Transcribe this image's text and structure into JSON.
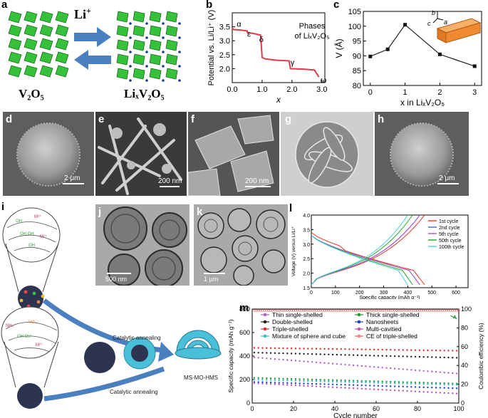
{
  "panels": {
    "a": {
      "label": "a",
      "ion": "Li",
      "ion_sup": "+",
      "left_formula": "V₂O₅",
      "right_formula": "LiₓV₂O₅"
    },
    "b": {
      "label": "b",
      "title_line1": "Phases",
      "title_line2": "of LiₓV₂O₅"
    },
    "c": {
      "label": "c",
      "axis_b": "b",
      "axis_c": "c",
      "axis_a": "a"
    },
    "d": {
      "label": "d",
      "scale": "2 μm"
    },
    "e": {
      "label": "e",
      "scale": "200 nm"
    },
    "f": {
      "label": "f",
      "scale": "200 nm"
    },
    "g": {
      "label": "g"
    },
    "h": {
      "label": "h",
      "scale": "2 μm"
    },
    "i": {
      "label": "i",
      "step1": "Catalytic annealing",
      "step2": "Catalytic annealing",
      "product": "MS-MO-HMS"
    },
    "j": {
      "label": "j",
      "scale": "500 nm"
    },
    "k": {
      "label": "k",
      "scale": "1 μm"
    },
    "l": {
      "label": "l"
    },
    "m": {
      "label": "m"
    }
  },
  "chart_data": [
    {
      "id": "b",
      "type": "line",
      "title": "Phases of LiₓV₂O₅",
      "xlabel": "x",
      "ylabel": "Potential vs. Li/Li⁺ (V)",
      "xlim": [
        0,
        3.1
      ],
      "ylim": [
        1.5,
        4.0
      ],
      "xticks": [
        0,
        1,
        2,
        3
      ],
      "yticks": [
        2.0,
        2.5,
        3.0,
        3.5
      ],
      "series": [
        {
          "x": [
            0.0,
            0.05,
            0.3,
            0.5,
            0.5,
            0.75,
            0.95,
            1.0,
            1.1,
            1.5,
            1.9,
            1.95,
            2.4,
            2.75,
            2.9
          ],
          "y": [
            3.45,
            3.4,
            3.38,
            3.35,
            3.3,
            3.25,
            3.2,
            2.4,
            2.35,
            2.3,
            2.28,
            2.0,
            1.98,
            1.95,
            1.7
          ]
        }
      ],
      "annotations": [
        {
          "text": "α",
          "x": 0.15,
          "y": 3.5
        },
        {
          "text": "ε",
          "x": 0.5,
          "y": 3.15
        },
        {
          "text": "δ",
          "x": 0.9,
          "y": 2.95
        },
        {
          "text": "γ",
          "x": 1.95,
          "y": 2.12
        },
        {
          "text": "ω",
          "x": 2.95,
          "y": 1.5
        }
      ]
    },
    {
      "id": "c",
      "type": "line",
      "xlabel": "x in LiₓV₂O₅",
      "ylabel": "V (Å)",
      "xlim": [
        -0.2,
        3.2
      ],
      "ylim": [
        80,
        105
      ],
      "xticks": [
        0,
        1,
        2,
        3
      ],
      "yticks": [
        80,
        85,
        90,
        95,
        100,
        105
      ],
      "series": [
        {
          "x": [
            0,
            0.5,
            1,
            2,
            3
          ],
          "y": [
            89.8,
            92.2,
            100.5,
            90.5,
            86.5
          ]
        }
      ]
    },
    {
      "id": "l",
      "type": "line",
      "xlabel": "Specific capacity (mAh g⁻¹)",
      "ylabel": "Voltage (V) versus Li/Li⁺",
      "xlim": [
        0,
        650
      ],
      "ylim": [
        1.5,
        4.0
      ],
      "xticks": [
        0,
        100,
        200,
        300,
        400,
        500,
        600
      ],
      "yticks": [
        1.5,
        2.0,
        2.5,
        3.0,
        3.5,
        4.0
      ],
      "legend": "top-right",
      "series": [
        {
          "name": "1st cycle",
          "color": "#e8382a",
          "end": 470
        },
        {
          "name": "2nd cycle",
          "color": "#2a6ad0",
          "end": 450
        },
        {
          "name": "5th cycle",
          "color": "#b04fc8",
          "end": 450
        },
        {
          "name": "50th cycle",
          "color": "#25a82a",
          "end": 420
        },
        {
          "name": "100th cycle",
          "color": "#4ad0d8",
          "end": 400
        }
      ]
    },
    {
      "id": "m",
      "type": "scatter",
      "xlabel": "Cycle number",
      "ylabel": "Specific capacity (mAh g⁻¹)",
      "y2label": "Coulombic efficiency (%)",
      "xlim": [
        0,
        100
      ],
      "ylim": [
        0,
        800
      ],
      "y2lim": [
        0,
        100
      ],
      "xticks": [
        0,
        20,
        40,
        60,
        80,
        100
      ],
      "yticks": [
        0,
        200,
        400,
        600,
        800
      ],
      "y2ticks": [
        0,
        20,
        40,
        60,
        80,
        100
      ],
      "legend": "top",
      "series": [
        {
          "name": "Thin single-shelled",
          "color": "#b060c8",
          "start": 390,
          "end": 250
        },
        {
          "name": "Thick single-shelled",
          "color": "#1f9a3a",
          "start": 215,
          "end": 165
        },
        {
          "name": "Double-shelled",
          "color": "#202020",
          "start": 430,
          "end": 385
        },
        {
          "name": "Nanosheets",
          "color": "#2046c8",
          "start": 180,
          "end": 125
        },
        {
          "name": "Triple-shelled",
          "color": "#e0302a",
          "start": 470,
          "end": 445
        },
        {
          "name": "Multi-cavitied",
          "color": "#c050b0",
          "start": 170,
          "end": 80
        },
        {
          "name": "Mixture of sphere and cube",
          "color": "#40b8c8",
          "start": 200,
          "end": 155
        },
        {
          "name": "CE of triple-shelled",
          "color": "#e06a6a",
          "ce": 98.5
        }
      ]
    }
  ]
}
